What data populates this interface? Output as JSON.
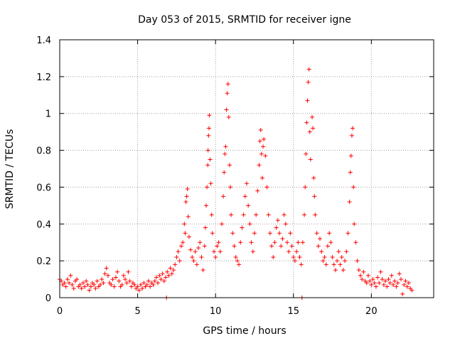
{
  "chart_data": {
    "type": "scatter",
    "title": "Day 053 of 2015, SRMTID for receiver igne",
    "xlabel": "GPS time / hours",
    "ylabel": "SRMTID / TECUs",
    "xlim": [
      0,
      24
    ],
    "ylim": [
      0,
      1.4
    ],
    "x_ticks": [
      "0",
      "5",
      "10",
      "15",
      "20"
    ],
    "y_ticks": [
      "0",
      "0.2",
      "0.4",
      "0.6",
      "0.8",
      "1",
      "1.2",
      "1.4"
    ],
    "grid": true,
    "marker": "+",
    "color": "#ff0000",
    "series": [
      {
        "name": "SRMTID",
        "points": [
          [
            0.0,
            0.1
          ],
          [
            0.1,
            0.09
          ],
          [
            0.2,
            0.07
          ],
          [
            0.3,
            0.08
          ],
          [
            0.4,
            0.06
          ],
          [
            0.5,
            0.1
          ],
          [
            0.6,
            0.08
          ],
          [
            0.7,
            0.12
          ],
          [
            0.8,
            0.07
          ],
          [
            0.9,
            0.05
          ],
          [
            1.0,
            0.09
          ],
          [
            1.1,
            0.1
          ],
          [
            1.2,
            0.06
          ],
          [
            1.3,
            0.07
          ],
          [
            1.4,
            0.05
          ],
          [
            1.5,
            0.08
          ],
          [
            1.6,
            0.06
          ],
          [
            1.7,
            0.09
          ],
          [
            1.8,
            0.07
          ],
          [
            1.9,
            0.04
          ],
          [
            2.0,
            0.06
          ],
          [
            2.1,
            0.08
          ],
          [
            2.2,
            0.07
          ],
          [
            2.3,
            0.05
          ],
          [
            2.4,
            0.09
          ],
          [
            2.5,
            0.06
          ],
          [
            2.6,
            0.07
          ],
          [
            2.7,
            0.1
          ],
          [
            2.8,
            0.08
          ],
          [
            2.9,
            0.13
          ],
          [
            3.0,
            0.16
          ],
          [
            3.1,
            0.12
          ],
          [
            3.2,
            0.08
          ],
          [
            3.3,
            0.07
          ],
          [
            3.4,
            0.1
          ],
          [
            3.5,
            0.06
          ],
          [
            3.6,
            0.11
          ],
          [
            3.7,
            0.14
          ],
          [
            3.8,
            0.09
          ],
          [
            3.9,
            0.06
          ],
          [
            4.0,
            0.07
          ],
          [
            4.1,
            0.12
          ],
          [
            4.2,
            0.1
          ],
          [
            4.3,
            0.08
          ],
          [
            4.4,
            0.14
          ],
          [
            4.5,
            0.09
          ],
          [
            4.6,
            0.06
          ],
          [
            4.7,
            0.08
          ],
          [
            4.8,
            0.07
          ],
          [
            4.9,
            0.05
          ],
          [
            5.0,
            0.06
          ],
          [
            5.1,
            0.04
          ],
          [
            5.2,
            0.07
          ],
          [
            5.3,
            0.05
          ],
          [
            5.4,
            0.08
          ],
          [
            5.5,
            0.06
          ],
          [
            5.6,
            0.07
          ],
          [
            5.7,
            0.09
          ],
          [
            5.8,
            0.06
          ],
          [
            5.9,
            0.08
          ],
          [
            6.0,
            0.07
          ],
          [
            6.1,
            0.09
          ],
          [
            6.2,
            0.11
          ],
          [
            6.3,
            0.08
          ],
          [
            6.4,
            0.12
          ],
          [
            6.5,
            0.1
          ],
          [
            6.6,
            0.13
          ],
          [
            6.7,
            0.09
          ],
          [
            6.8,
            0.11
          ],
          [
            6.85,
            0.0
          ],
          [
            6.9,
            0.14
          ],
          [
            7.0,
            0.12
          ],
          [
            7.1,
            0.16
          ],
          [
            7.2,
            0.13
          ],
          [
            7.3,
            0.15
          ],
          [
            7.4,
            0.18
          ],
          [
            7.5,
            0.22
          ],
          [
            7.6,
            0.25
          ],
          [
            7.7,
            0.2
          ],
          [
            7.8,
            0.28
          ],
          [
            7.9,
            0.3
          ],
          [
            8.0,
            0.4
          ],
          [
            8.05,
            0.35
          ],
          [
            8.1,
            0.52
          ],
          [
            8.15,
            0.55
          ],
          [
            8.2,
            0.59
          ],
          [
            8.25,
            0.44
          ],
          [
            8.3,
            0.33
          ],
          [
            8.4,
            0.26
          ],
          [
            8.5,
            0.22
          ],
          [
            8.6,
            0.2
          ],
          [
            8.7,
            0.25
          ],
          [
            8.8,
            0.18
          ],
          [
            8.9,
            0.27
          ],
          [
            9.0,
            0.3
          ],
          [
            9.1,
            0.22
          ],
          [
            9.2,
            0.15
          ],
          [
            9.3,
            0.28
          ],
          [
            9.35,
            0.38
          ],
          [
            9.4,
            0.5
          ],
          [
            9.45,
            0.6
          ],
          [
            9.5,
            0.72
          ],
          [
            9.52,
            0.8
          ],
          [
            9.55,
            0.88
          ],
          [
            9.58,
            0.92
          ],
          [
            9.6,
            0.99
          ],
          [
            9.65,
            0.75
          ],
          [
            9.7,
            0.62
          ],
          [
            9.75,
            0.45
          ],
          [
            9.8,
            0.35
          ],
          [
            9.9,
            0.25
          ],
          [
            10.0,
            0.22
          ],
          [
            10.1,
            0.28
          ],
          [
            10.2,
            0.3
          ],
          [
            10.3,
            0.25
          ],
          [
            10.4,
            0.4
          ],
          [
            10.5,
            0.55
          ],
          [
            10.55,
            0.68
          ],
          [
            10.6,
            0.78
          ],
          [
            10.65,
            0.82
          ],
          [
            10.7,
            1.02
          ],
          [
            10.75,
            1.11
          ],
          [
            10.8,
            1.16
          ],
          [
            10.85,
            0.98
          ],
          [
            10.9,
            0.72
          ],
          [
            10.95,
            0.6
          ],
          [
            11.0,
            0.45
          ],
          [
            11.1,
            0.35
          ],
          [
            11.2,
            0.28
          ],
          [
            11.3,
            0.22
          ],
          [
            11.4,
            0.2
          ],
          [
            11.5,
            0.18
          ],
          [
            11.6,
            0.3
          ],
          [
            11.7,
            0.38
          ],
          [
            11.8,
            0.45
          ],
          [
            11.9,
            0.55
          ],
          [
            12.0,
            0.62
          ],
          [
            12.1,
            0.5
          ],
          [
            12.2,
            0.4
          ],
          [
            12.3,
            0.3
          ],
          [
            12.4,
            0.25
          ],
          [
            12.5,
            0.35
          ],
          [
            12.6,
            0.45
          ],
          [
            12.7,
            0.58
          ],
          [
            12.8,
            0.72
          ],
          [
            12.85,
            0.85
          ],
          [
            12.9,
            0.91
          ],
          [
            12.95,
            0.78
          ],
          [
            13.0,
            0.65
          ],
          [
            13.05,
            0.82
          ],
          [
            13.1,
            0.86
          ],
          [
            13.2,
            0.77
          ],
          [
            13.3,
            0.6
          ],
          [
            13.4,
            0.45
          ],
          [
            13.5,
            0.35
          ],
          [
            13.6,
            0.28
          ],
          [
            13.7,
            0.22
          ],
          [
            13.8,
            0.3
          ],
          [
            13.9,
            0.38
          ],
          [
            14.0,
            0.42
          ],
          [
            14.1,
            0.35
          ],
          [
            14.2,
            0.28
          ],
          [
            14.3,
            0.32
          ],
          [
            14.4,
            0.45
          ],
          [
            14.5,
            0.4
          ],
          [
            14.6,
            0.3
          ],
          [
            14.7,
            0.25
          ],
          [
            14.8,
            0.35
          ],
          [
            14.9,
            0.28
          ],
          [
            15.0,
            0.22
          ],
          [
            15.1,
            0.2
          ],
          [
            15.2,
            0.25
          ],
          [
            15.3,
            0.3
          ],
          [
            15.4,
            0.22
          ],
          [
            15.5,
            0.18
          ],
          [
            15.55,
            0.0
          ],
          [
            15.6,
            0.3
          ],
          [
            15.7,
            0.45
          ],
          [
            15.75,
            0.6
          ],
          [
            15.8,
            0.78
          ],
          [
            15.85,
            0.95
          ],
          [
            15.9,
            1.07
          ],
          [
            15.95,
            1.17
          ],
          [
            16.0,
            1.24
          ],
          [
            16.05,
            0.9
          ],
          [
            16.1,
            0.75
          ],
          [
            16.2,
            0.98
          ],
          [
            16.25,
            0.92
          ],
          [
            16.3,
            0.65
          ],
          [
            16.35,
            0.55
          ],
          [
            16.4,
            0.45
          ],
          [
            16.5,
            0.35
          ],
          [
            16.6,
            0.28
          ],
          [
            16.7,
            0.32
          ],
          [
            16.8,
            0.25
          ],
          [
            16.9,
            0.2
          ],
          [
            17.0,
            0.22
          ],
          [
            17.1,
            0.18
          ],
          [
            17.2,
            0.28
          ],
          [
            17.3,
            0.35
          ],
          [
            17.4,
            0.3
          ],
          [
            17.5,
            0.22
          ],
          [
            17.6,
            0.18
          ],
          [
            17.7,
            0.15
          ],
          [
            17.8,
            0.2
          ],
          [
            17.9,
            0.25
          ],
          [
            18.0,
            0.18
          ],
          [
            18.1,
            0.22
          ],
          [
            18.2,
            0.15
          ],
          [
            18.3,
            0.2
          ],
          [
            18.4,
            0.25
          ],
          [
            18.5,
            0.35
          ],
          [
            18.6,
            0.52
          ],
          [
            18.65,
            0.68
          ],
          [
            18.7,
            0.77
          ],
          [
            18.75,
            0.88
          ],
          [
            18.8,
            0.92
          ],
          [
            18.85,
            0.6
          ],
          [
            18.9,
            0.4
          ],
          [
            19.0,
            0.3
          ],
          [
            19.1,
            0.2
          ],
          [
            19.2,
            0.15
          ],
          [
            19.3,
            0.12
          ],
          [
            19.4,
            0.1
          ],
          [
            19.5,
            0.14
          ],
          [
            19.6,
            0.09
          ],
          [
            19.7,
            0.08
          ],
          [
            19.8,
            0.12
          ],
          [
            19.9,
            0.09
          ],
          [
            20.0,
            0.07
          ],
          [
            20.1,
            0.1
          ],
          [
            20.2,
            0.08
          ],
          [
            20.3,
            0.06
          ],
          [
            20.4,
            0.11
          ],
          [
            20.5,
            0.08
          ],
          [
            20.6,
            0.14
          ],
          [
            20.7,
            0.1
          ],
          [
            20.8,
            0.07
          ],
          [
            20.9,
            0.09
          ],
          [
            21.0,
            0.06
          ],
          [
            21.1,
            0.1
          ],
          [
            21.2,
            0.08
          ],
          [
            21.3,
            0.12
          ],
          [
            21.4,
            0.07
          ],
          [
            21.5,
            0.09
          ],
          [
            21.6,
            0.06
          ],
          [
            21.7,
            0.08
          ],
          [
            21.8,
            0.13
          ],
          [
            21.9,
            0.1
          ],
          [
            22.0,
            0.02
          ],
          [
            22.1,
            0.07
          ],
          [
            22.2,
            0.09
          ],
          [
            22.3,
            0.06
          ],
          [
            22.4,
            0.08
          ],
          [
            22.5,
            0.05
          ],
          [
            22.6,
            0.04
          ]
        ]
      }
    ]
  }
}
